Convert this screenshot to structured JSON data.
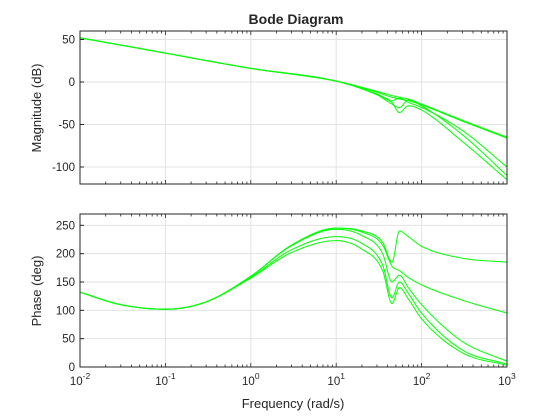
{
  "chart_data": {
    "type": "line",
    "title": "Bode Diagram",
    "xlabel": "Frequency (rad/s)",
    "x_scale": "log",
    "xlim": [
      0.01,
      1000
    ],
    "x_ticks": [
      {
        "value": 0.01,
        "base": "10",
        "exp": "-2"
      },
      {
        "value": 0.1,
        "base": "10",
        "exp": "-1"
      },
      {
        "value": 1,
        "base": "10",
        "exp": "0"
      },
      {
        "value": 10,
        "base": "10",
        "exp": "1"
      },
      {
        "value": 100,
        "base": "10",
        "exp": "2"
      },
      {
        "value": 1000,
        "base": "10",
        "exp": "3"
      }
    ],
    "grid": true,
    "line_color": "#00ff00",
    "panels": [
      {
        "id": "magnitude",
        "ylabel": "Magnitude (dB)",
        "ylim": [
          -120,
          60
        ],
        "yticks": [
          50,
          0,
          -50,
          -100
        ],
        "series": [
          {
            "x": [
              0.01,
              0.1,
              1,
              10,
              30,
              45,
              55,
              70,
              100,
              300,
              1000
            ],
            "y": [
              52,
              34,
              16,
              1,
              -11,
              -16,
              -18,
              -20,
              -26,
              -45,
              -65
            ]
          },
          {
            "x": [
              0.01,
              0.1,
              1,
              10,
              30,
              45,
              55,
              70,
              100,
              300,
              1000
            ],
            "y": [
              52,
              34,
              16,
              1,
              -12,
              -18,
              -20,
              -22,
              -27,
              -46,
              -66
            ]
          },
          {
            "x": [
              0.01,
              0.1,
              1,
              10,
              30,
              45,
              55,
              70,
              100,
              300,
              1000
            ],
            "y": [
              52,
              34,
              16,
              1,
              -14,
              -22,
              -19,
              -24,
              -30,
              -57,
              -100
            ]
          },
          {
            "x": [
              0.01,
              0.1,
              1,
              10,
              30,
              45,
              55,
              70,
              100,
              300,
              1000
            ],
            "y": [
              52,
              34,
              16,
              1,
              -15,
              -26,
              -30,
              -21,
              -28,
              -62,
              -110
            ]
          },
          {
            "x": [
              0.01,
              0.1,
              1,
              10,
              30,
              45,
              55,
              70,
              100,
              300,
              1000
            ],
            "y": [
              52,
              34,
              16,
              1,
              -15,
              -24,
              -36,
              -28,
              -33,
              -70,
              -115
            ]
          }
        ]
      },
      {
        "id": "phase",
        "ylabel": "Phase (deg)",
        "ylim": [
          0,
          270
        ],
        "yticks": [
          250,
          200,
          150,
          100,
          50,
          0
        ],
        "series": [
          {
            "x": [
              0.01,
              0.03,
              0.1,
              0.3,
              1,
              3,
              10,
              20,
              35,
              45,
              55,
              70,
              100,
              300,
              1000
            ],
            "y": [
              132,
              110,
              102,
              115,
              160,
              215,
              245,
              240,
              220,
              185,
              240,
              230,
              213,
              192,
              185
            ]
          },
          {
            "x": [
              0.01,
              0.03,
              0.1,
              0.3,
              1,
              3,
              10,
              20,
              35,
              45,
              55,
              70,
              100,
              300,
              1000
            ],
            "y": [
              132,
              110,
              102,
              115,
              160,
              215,
              245,
              238,
              215,
              178,
              170,
              158,
              145,
              118,
              95
            ]
          },
          {
            "x": [
              0.01,
              0.03,
              0.1,
              0.3,
              1,
              3,
              10,
              20,
              35,
              45,
              55,
              70,
              100,
              300,
              1000
            ],
            "y": [
              132,
              110,
              102,
              115,
              160,
              214,
              243,
              232,
              200,
              150,
              162,
              140,
              110,
              45,
              10
            ]
          },
          {
            "x": [
              0.01,
              0.03,
              0.1,
              0.3,
              1,
              3,
              10,
              20,
              35,
              45,
              55,
              70,
              100,
              300,
              1000
            ],
            "y": [
              132,
              110,
              102,
              115,
              158,
              207,
              230,
              218,
              180,
              122,
              150,
              130,
              95,
              30,
              5
            ]
          },
          {
            "x": [
              0.01,
              0.03,
              0.1,
              0.3,
              1,
              3,
              10,
              20,
              35,
              45,
              55,
              70,
              100,
              300,
              1000
            ],
            "y": [
              132,
              110,
              102,
              115,
              157,
              202,
              223,
              208,
              170,
              112,
              140,
              120,
              85,
              25,
              3
            ]
          }
        ]
      }
    ]
  }
}
